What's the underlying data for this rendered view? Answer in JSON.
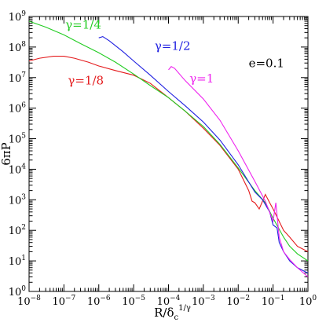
{
  "chart_data": {
    "type": "line",
    "xscale": "log",
    "yscale": "log",
    "xlim": [
      1e-08,
      1
    ],
    "ylim": [
      1,
      1000000000.0
    ],
    "xlabel": "R/δ",
    "xlabel_sub": "c",
    "xlabel_sup": "1/γ",
    "ylabel": "6πP",
    "x_tick_base": "10",
    "x_ticks": [
      {
        "value": 1e-08,
        "exp": "−8"
      },
      {
        "value": 1e-07,
        "exp": "−7"
      },
      {
        "value": 1e-06,
        "exp": "−6"
      },
      {
        "value": 1e-05,
        "exp": "−5"
      },
      {
        "value": 0.0001,
        "exp": "−4"
      },
      {
        "value": 0.001,
        "exp": "−3"
      },
      {
        "value": 0.01,
        "exp": "−2"
      },
      {
        "value": 0.1,
        "exp": "−1"
      },
      {
        "value": 1,
        "exp": "0"
      }
    ],
    "y_tick_base": "10",
    "y_ticks": [
      {
        "value": 1,
        "exp": "0"
      },
      {
        "value": 10,
        "exp": "1"
      },
      {
        "value": 100,
        "exp": "2"
      },
      {
        "value": 1000,
        "exp": "3"
      },
      {
        "value": 10000.0,
        "exp": "4"
      },
      {
        "value": 100000.0,
        "exp": "5"
      },
      {
        "value": 1000000.0,
        "exp": "6"
      },
      {
        "value": 10000000.0,
        "exp": "7"
      },
      {
        "value": 100000000.0,
        "exp": "8"
      },
      {
        "value": 1000000000.0,
        "exp": "9"
      }
    ],
    "annotation": "e=0.1",
    "series": [
      {
        "name": "γ=1/8",
        "color": "#e41a1c",
        "points": [
          [
            1e-08,
            35000000.0
          ],
          [
            2e-08,
            43000000.0
          ],
          [
            5e-08,
            50000000.0
          ],
          [
            1e-07,
            50000000.0
          ],
          [
            2e-07,
            43000000.0
          ],
          [
            5e-07,
            32000000.0
          ],
          [
            1e-06,
            24000000.0
          ],
          [
            3e-06,
            17000000.0
          ],
          [
            1e-05,
            12000000.0
          ],
          [
            3e-05,
            6500000.0
          ],
          [
            0.0001,
            2200000.0
          ],
          [
            0.0003,
            800000.0
          ],
          [
            0.001,
            220000.0
          ],
          [
            0.003,
            60000.0
          ],
          [
            0.01,
            10000.0
          ],
          [
            0.02,
            2000.0
          ],
          [
            0.025,
            900.0
          ],
          [
            0.03,
            800.0
          ],
          [
            0.04,
            500.0
          ],
          [
            0.06,
            1500.0
          ],
          [
            0.08,
            800.0
          ],
          [
            0.1,
            500.0
          ],
          [
            0.2,
            100.0
          ],
          [
            0.3,
            60.0
          ],
          [
            0.5,
            30.0
          ],
          [
            1,
            20.0
          ]
        ]
      },
      {
        "name": "γ=1/4",
        "color": "#22cc22",
        "points": [
          [
            1e-08,
            700000000.0
          ],
          [
            3e-08,
            450000000.0
          ],
          [
            1e-07,
            250000000.0
          ],
          [
            3e-07,
            130000000.0
          ],
          [
            1e-06,
            65000000.0
          ],
          [
            3e-06,
            32000000.0
          ],
          [
            1e-05,
            13000000.0
          ],
          [
            3e-05,
            5500000.0
          ],
          [
            0.0001,
            2200000.0
          ],
          [
            0.0003,
            800000.0
          ],
          [
            0.001,
            250000.0
          ],
          [
            0.003,
            65000.0
          ],
          [
            0.01,
            11000.0
          ],
          [
            0.03,
            2000.0
          ],
          [
            0.06,
            800.0
          ],
          [
            0.1,
            250.0
          ],
          [
            0.2,
            60.0
          ],
          [
            0.3,
            30.0
          ],
          [
            0.5,
            17.0
          ],
          [
            1,
            10.0
          ]
        ]
      },
      {
        "name": "γ=1/2",
        "color": "#1f1fe0",
        "points": [
          [
            1e-06,
            200000000.0
          ],
          [
            1.3e-06,
            220000000.0
          ],
          [
            2e-06,
            160000000.0
          ],
          [
            5e-06,
            70000000.0
          ],
          [
            1e-05,
            35000000.0
          ],
          [
            3e-05,
            12000000.0
          ],
          [
            0.0001,
            3500000.0
          ],
          [
            0.0003,
            1200000.0
          ],
          [
            0.001,
            350000.0
          ],
          [
            0.003,
            90000.0
          ],
          [
            0.01,
            14000.0
          ],
          [
            0.03,
            1800.0
          ],
          [
            0.05,
            1000.0
          ],
          [
            0.08,
            400.0
          ],
          [
            0.1,
            150.0
          ],
          [
            0.13,
            120.0
          ],
          [
            0.15,
            40.0
          ],
          [
            0.2,
            20.0
          ],
          [
            0.3,
            10.0
          ],
          [
            0.5,
            6
          ],
          [
            1,
            4
          ]
        ]
      },
      {
        "name": "γ=1",
        "color": "#ee22ee",
        "points": [
          [
            0.0001,
            18000000.0
          ],
          [
            0.00012,
            23000000.0
          ],
          [
            0.00015,
            20000000.0
          ],
          [
            0.0003,
            8000000.0
          ],
          [
            0.001,
            2000000.0
          ],
          [
            0.003,
            400000.0
          ],
          [
            0.01,
            40000.0
          ],
          [
            0.03,
            4000.0
          ],
          [
            0.06,
            900.0
          ],
          [
            0.1,
            200.0
          ],
          [
            0.12,
            800.0
          ],
          [
            0.15,
            60.0
          ],
          [
            0.2,
            20.0
          ],
          [
            0.3,
            11.0
          ],
          [
            0.5,
            6
          ],
          [
            1,
            3
          ]
        ]
      }
    ],
    "labels": [
      {
        "text": "γ=1/4",
        "color": "#22cc22",
        "x": 1.1e-07,
        "y": 400000000.0
      },
      {
        "text": "γ=1/2",
        "color": "#1f1fe0",
        "x": 4e-05,
        "y": 80000000.0
      },
      {
        "text": "γ=1/8",
        "color": "#e41a1c",
        "x": 1.3e-07,
        "y": 6000000.0
      },
      {
        "text": "γ=1",
        "color": "#ee22ee",
        "x": 0.0004,
        "y": 7000000.0
      }
    ],
    "annotation_pos": {
      "x": 0.02,
      "y": 22000000.0
    }
  }
}
